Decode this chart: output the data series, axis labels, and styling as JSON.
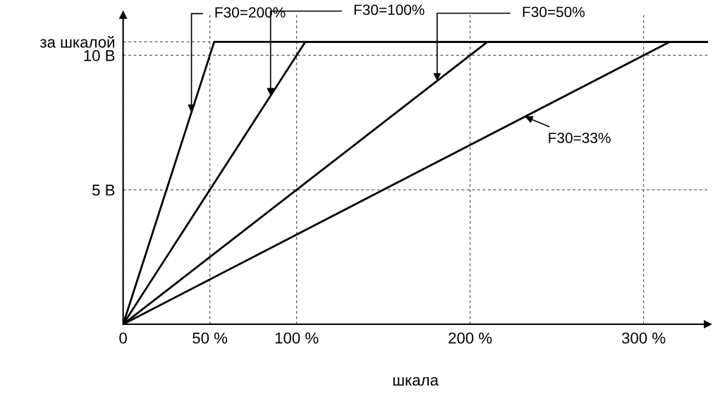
{
  "chart_data": {
    "type": "line",
    "xlabel": "шкала",
    "series": [
      {
        "color": "#000000",
        "x": [
          0,
          52.5,
          337
        ],
        "values": [
          0,
          10.5,
          10.5
        ]
      },
      {
        "color": "#000000",
        "x": [
          0,
          105,
          337
        ],
        "values": [
          0,
          10.5,
          10.5
        ]
      },
      {
        "color": "#000000",
        "x": [
          0,
          210,
          337
        ],
        "values": [
          0,
          10.5,
          10.5
        ]
      },
      {
        "color": "#000000",
        "x": [
          0,
          315,
          337
        ],
        "values": [
          0,
          10.5,
          10.5
        ]
      }
    ],
    "xlim": [
      0,
      337
    ],
    "ylim": [
      0,
      11.5
    ],
    "xticks": [
      0,
      {
        "value": 50,
        "label": "50 %"
      },
      {
        "value": 100,
        "label": "100 %"
      },
      {
        "value": 200,
        "label": "200 %"
      },
      {
        "value": 300,
        "label": "300 %"
      }
    ],
    "yticks": [
      {
        "value": 5,
        "label": "5 В"
      },
      {
        "value": 10,
        "label": "10 В"
      },
      {
        "value": 10.5,
        "label": "за шкалой"
      }
    ],
    "grid": true,
    "marker": "none",
    "line_style": "solid",
    "legend": false,
    "annotations": [
      {
        "text": "F30=200%",
        "x": 39.4,
        "y": 7.88
      },
      {
        "text": "F30=100%",
        "x": 85,
        "y": 8.5
      },
      {
        "text": "F30=50%",
        "x": 181,
        "y": 9.05
      },
      {
        "text": "F30=33%",
        "x": 231.7,
        "y": 7.72
      }
    ]
  }
}
